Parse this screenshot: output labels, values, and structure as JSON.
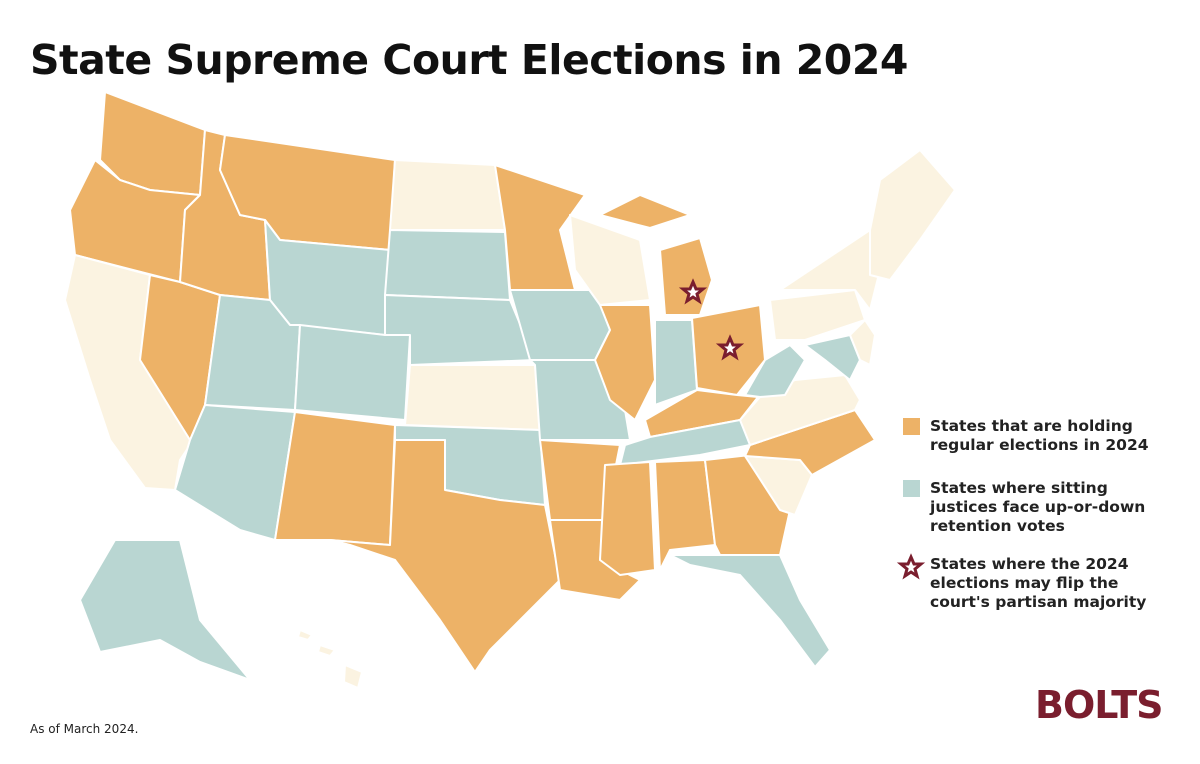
{
  "header": {
    "title": "State Supreme Court Elections in 2024"
  },
  "legend": {
    "items": [
      {
        "label": "States that are holding regular elections in 2024"
      },
      {
        "label": "States where sitting justices face up-or-down retention votes"
      },
      {
        "label": "States where the 2024 elections may flip the court's partisan majority"
      }
    ]
  },
  "footer": {
    "note": "As of March 2024.",
    "logo": "BOLTS"
  }
}
